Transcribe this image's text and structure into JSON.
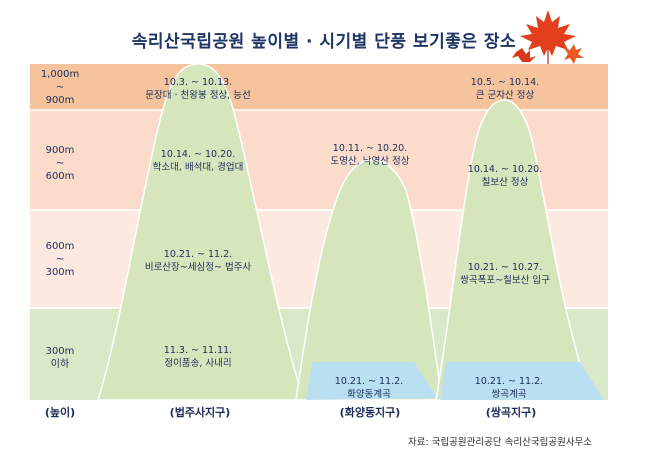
{
  "title": "속리산국립공원 높이별 · 시기별 단풍 보기좋은 장소",
  "colors": {
    "band_1000_900": "#f6c49c",
    "band_900_600": "#fbdccb",
    "band_600_300": "#fde9df",
    "band_300_below": "#d9e8c6",
    "mountain": "#d5e6bd",
    "water": "#b9dff0",
    "title": "#1f3566"
  },
  "height_bands": [
    {
      "line1": "1,000m",
      "line2": "~",
      "line3": "900m"
    },
    {
      "line1": "900m",
      "line2": "~",
      "line3": "600m"
    },
    {
      "line1": "600m",
      "line2": "~",
      "line3": "300m"
    },
    {
      "line1": "300m",
      "line2": "이하",
      "line3": ""
    }
  ],
  "districts": {
    "beopjusa": {
      "name": "(법주사지구)",
      "spots": [
        {
          "date": "10.3. ~ 10.13.",
          "place": "문장대 · 천왕봉 정상, 능선"
        },
        {
          "date": "10.14. ~ 10.20.",
          "place": "학소대, 배석대, 경업대"
        },
        {
          "date": "10.21. ~ 11.2.",
          "place": "비로산장~세심정~ 법주사"
        },
        {
          "date": "11.3. ~ 11.11.",
          "place": "정이품송, 사내리"
        }
      ]
    },
    "hwayangdong": {
      "name": "(화양동지구)",
      "spots": [
        {
          "date": "10.11. ~ 10.20.",
          "place": "도명산, 낙영산 정상"
        },
        {
          "date": "10.21. ~ 11.2.",
          "place": "화양동계곡"
        }
      ]
    },
    "ssanggok": {
      "name": "(쌍곡지구)",
      "spots": [
        {
          "date": "10.5. ~ 10.14.",
          "place": "큰 군자산 정상"
        },
        {
          "date": "10.14. ~ 10.20.",
          "place": "칠보산 정상"
        },
        {
          "date": "10.21. ~ 10.27.",
          "place": "쌍곡폭포~칠보산 입구"
        },
        {
          "date": "10.21. ~ 11.2.",
          "place": "쌍곡계곡"
        }
      ]
    }
  },
  "axis_label": "(높이)",
  "source": "자료: 국립공원관리공단 속리산국립공원사무소",
  "icons": [
    "maple-leaf-icon"
  ]
}
